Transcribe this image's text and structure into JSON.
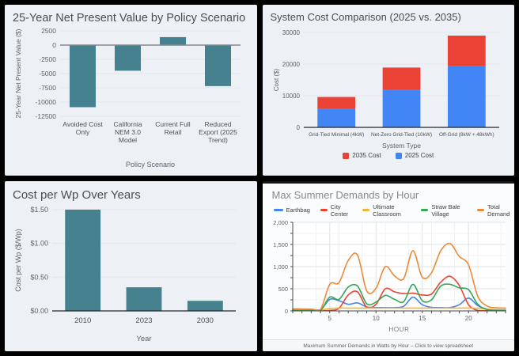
{
  "colors": {
    "teal": "#45818e",
    "blue": "#4285f4",
    "red": "#ea4335",
    "yellow": "#f1b434",
    "green": "#34a853",
    "orange": "#ed8936",
    "grid": "#e2e5e9",
    "tick_text": "#5f6368"
  },
  "chart_data": [
    {
      "type": "bar",
      "title": "25-Year Net Present Value by Policy Scenario",
      "xlabel": "Policy Scenario",
      "ylabel": "25-Year Net Present Value ($)",
      "categories": [
        "Avoided Cost\nOnly",
        "California\nNEM 3.0\nModel",
        "Current Full\nRetail",
        "Reduced\nExport (2025\nTrend)"
      ],
      "values": [
        -10900,
        -4500,
        1400,
        -7200
      ],
      "bar_color": "#45818e",
      "ylim": [
        -12500,
        2500
      ],
      "yticks": [
        {
          "v": 2500,
          "label": "2500"
        },
        {
          "v": 0,
          "label": "0"
        },
        {
          "v": -2500,
          "label": "-2500"
        },
        {
          "v": -5000,
          "label": "-5000"
        },
        {
          "v": -7500,
          "label": "-7500"
        },
        {
          "v": -10000,
          "label": "-10000"
        },
        {
          "v": -12500,
          "label": "-12500"
        }
      ]
    },
    {
      "type": "stacked-bar",
      "title": "System Cost Comparison (2025 vs. 2035)",
      "xlabel": "System Type",
      "ylabel": "Cost ($)",
      "categories": [
        "Grid-Tied Minimal (4kW)",
        "Net-Zero Grid-Tied (10kW)",
        "Off-Grid (8kW + 48kWh)"
      ],
      "series": [
        {
          "name": "2025 Cost",
          "color": "#4285f4",
          "values": [
            5800,
            11900,
            19400
          ]
        },
        {
          "name": "2035 Cost",
          "color": "#ea4335",
          "values": [
            3800,
            7000,
            9600
          ]
        }
      ],
      "legend": [
        {
          "label": "2035 Cost",
          "color": "#ea4335"
        },
        {
          "label": "2025 Cost",
          "color": "#4285f4"
        }
      ],
      "ylim": [
        0,
        30000
      ],
      "yticks": [
        {
          "v": 0,
          "label": "0"
        },
        {
          "v": 10000,
          "label": "10000"
        },
        {
          "v": 20000,
          "label": "20000"
        },
        {
          "v": 30000,
          "label": "30000"
        }
      ]
    },
    {
      "type": "bar",
      "title": "Cost per Wp Over Years",
      "xlabel": "Year",
      "ylabel": "Cost per Wp ($/Wp)",
      "categories": [
        "2010",
        "2023",
        "2030"
      ],
      "values": [
        1.5,
        0.35,
        0.15
      ],
      "bar_color": "#45818e",
      "ylim": [
        0,
        1.5
      ],
      "yticks": [
        {
          "v": 0,
          "label": "$0.00"
        },
        {
          "v": 0.5,
          "label": "$0.50"
        },
        {
          "v": 1.0,
          "label": "$1.00"
        },
        {
          "v": 1.5,
          "label": "$1.50"
        }
      ]
    },
    {
      "type": "line",
      "title": "Max Summer Demands by Hour",
      "xlabel": "HOUR",
      "footer": "Maximum Summer Demands in Watts by Hour – Click to view spreadsheet",
      "x": [
        1,
        2,
        3,
        4,
        5,
        6,
        7,
        8,
        9,
        10,
        11,
        12,
        13,
        14,
        15,
        16,
        17,
        18,
        19,
        20,
        21,
        22,
        23,
        24
      ],
      "xticks": [
        5,
        10,
        15,
        20
      ],
      "x_minor_step": 2.5,
      "ylim": [
        0,
        2000
      ],
      "y_minor_step": 250,
      "yticks": [
        {
          "v": 0,
          "label": "0"
        },
        {
          "v": 500,
          "label": "500"
        },
        {
          "v": 1000,
          "label": "1,000"
        },
        {
          "v": 1500,
          "label": "1,500"
        },
        {
          "v": 2000,
          "label": "2,000"
        }
      ],
      "series": [
        {
          "name": "Earthbag",
          "color": "#4285f4",
          "values": [
            15,
            15,
            15,
            15,
            260,
            230,
            150,
            180,
            90,
            75,
            75,
            75,
            105,
            310,
            140,
            80,
            75,
            75,
            140,
            290,
            120,
            40,
            15,
            10
          ]
        },
        {
          "name": "City Center",
          "color": "#ea4335",
          "values": [
            5,
            5,
            5,
            5,
            10,
            60,
            360,
            430,
            80,
            150,
            500,
            430,
            390,
            400,
            360,
            380,
            650,
            780,
            575,
            140,
            10,
            5,
            5,
            5
          ]
        },
        {
          "name": "Ultimate Classroom",
          "color": "#f1b434",
          "values": [
            30,
            30,
            30,
            20,
            55,
            65,
            65,
            65,
            65,
            65,
            65,
            65,
            65,
            65,
            65,
            65,
            65,
            65,
            65,
            65,
            60,
            40,
            25,
            25
          ]
        },
        {
          "name": "Straw Bale Village",
          "color": "#34a853",
          "values": [
            10,
            10,
            10,
            10,
            310,
            260,
            540,
            560,
            160,
            200,
            350,
            260,
            210,
            600,
            230,
            250,
            560,
            600,
            520,
            480,
            150,
            30,
            15,
            10
          ]
        },
        {
          "name": "Total Demand",
          "color": "#ed8936",
          "values": [
            45,
            45,
            40,
            30,
            600,
            640,
            1140,
            1260,
            450,
            510,
            1000,
            790,
            730,
            1360,
            760,
            860,
            1360,
            1520,
            1230,
            1040,
            330,
            110,
            70,
            65
          ]
        }
      ]
    }
  ]
}
